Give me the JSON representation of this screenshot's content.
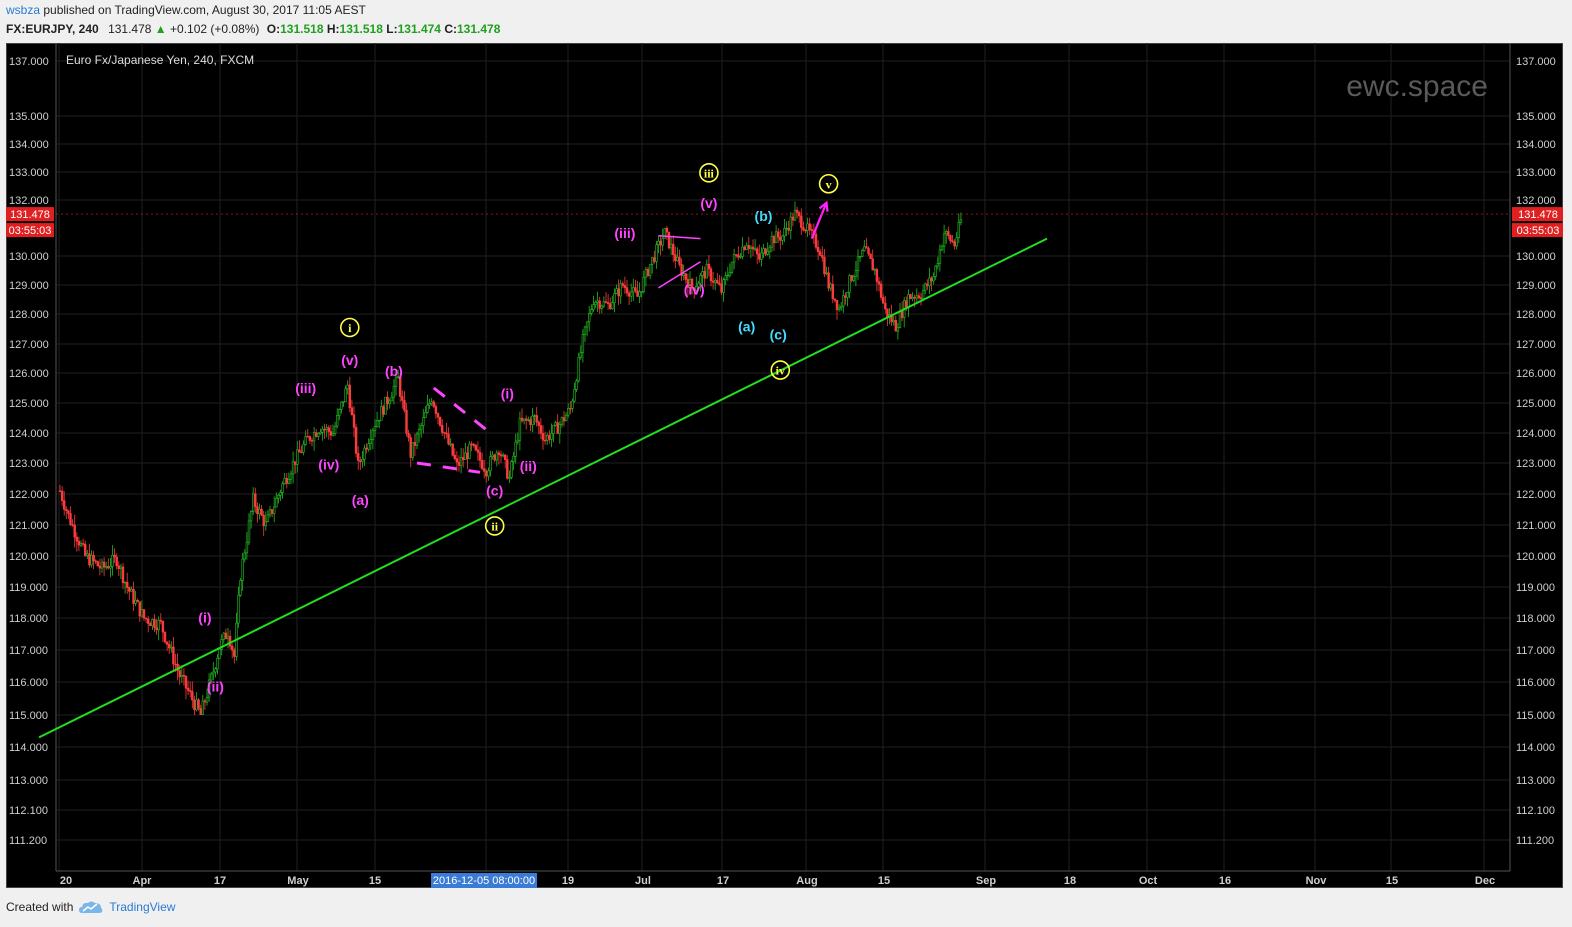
{
  "header": {
    "user": "wsbza",
    "published": " published on TradingView.com, August 30, 2017 11:05 AEST",
    "symbol": "FX:EURJPY, 240",
    "last": "131.478",
    "change": "+0.102 (+0.08%)",
    "o_label": "O:",
    "o": "131.518",
    "h_label": "H:",
    "h": "131.518",
    "l_label": "L:",
    "l": "131.474",
    "c_label": "C:",
    "c": "131.478"
  },
  "footer": {
    "created": "Created with",
    "brand": "TradingView"
  },
  "chart_data": {
    "type": "candlestick",
    "title": "Euro Fx/Japanese Yen, 240, FXCM",
    "watermark": "ewc.space",
    "y_ticks": [
      "137.000",
      "135.000",
      "134.000",
      "133.000",
      "132.000",
      "130.000",
      "129.000",
      "128.000",
      "127.000",
      "126.000",
      "125.000",
      "124.000",
      "123.000",
      "122.000",
      "121.000",
      "120.000",
      "119.000",
      "118.000",
      "117.000",
      "116.000",
      "115.000",
      "114.000",
      "113.000",
      "112.100",
      "111.200"
    ],
    "x_ticks": [
      "20",
      "Apr",
      "17",
      "May",
      "15",
      "19",
      "Jul",
      "17",
      "Aug",
      "15",
      "Sep",
      "18",
      "Oct",
      "16",
      "Nov",
      "15",
      "Dec"
    ],
    "cursor_label": "2016-12-05 08:00:00",
    "price_label": "131.478",
    "countdown": "03:55:03",
    "waypoints": [
      [
        0,
        122.1
      ],
      [
        4,
        121.3
      ],
      [
        12,
        120.0
      ],
      [
        20,
        119.6
      ],
      [
        27,
        119.9
      ],
      [
        32,
        119.0
      ],
      [
        40,
        118.0
      ],
      [
        48,
        117.8
      ],
      [
        57,
        116.2
      ],
      [
        67,
        115.0
      ],
      [
        72,
        116.1
      ],
      [
        76,
        117.1
      ],
      [
        80,
        117.6
      ],
      [
        83,
        116.8
      ],
      [
        86,
        119.4
      ],
      [
        92,
        121.8
      ],
      [
        98,
        121.0
      ],
      [
        106,
        122.3
      ],
      [
        112,
        123.1
      ],
      [
        118,
        123.8
      ],
      [
        124,
        124.2
      ],
      [
        130,
        124.0
      ],
      [
        137,
        125.6
      ],
      [
        142,
        122.9
      ],
      [
        149,
        124.2
      ],
      [
        156,
        125.1
      ],
      [
        161,
        125.8
      ],
      [
        167,
        123.3
      ],
      [
        173,
        124.4
      ],
      [
        177,
        125.2
      ],
      [
        183,
        124.0
      ],
      [
        189,
        122.9
      ],
      [
        196,
        123.5
      ],
      [
        203,
        122.8
      ],
      [
        209,
        123.5
      ],
      [
        214,
        122.5
      ],
      [
        219,
        124.3
      ],
      [
        226,
        124.5
      ],
      [
        231,
        123.8
      ],
      [
        237,
        124.2
      ],
      [
        243,
        124.8
      ],
      [
        249,
        127.1
      ],
      [
        254,
        128.5
      ],
      [
        261,
        128.3
      ],
      [
        268,
        129.0
      ],
      [
        275,
        128.6
      ],
      [
        281,
        129.7
      ],
      [
        288,
        130.8
      ],
      [
        295,
        129.6
      ],
      [
        301,
        128.9
      ],
      [
        308,
        129.5
      ],
      [
        315,
        128.8
      ],
      [
        320,
        129.8
      ],
      [
        327,
        130.5
      ],
      [
        333,
        129.9
      ],
      [
        339,
        130.6
      ],
      [
        344,
        130.7
      ],
      [
        350,
        131.5
      ],
      [
        357,
        130.8
      ],
      [
        362,
        130.2
      ],
      [
        366,
        129.0
      ],
      [
        371,
        128.2
      ],
      [
        377,
        129.3
      ],
      [
        383,
        130.2
      ],
      [
        388,
        129.5
      ],
      [
        393,
        128.1
      ],
      [
        398,
        127.6
      ],
      [
        404,
        128.6
      ],
      [
        410,
        128.7
      ],
      [
        416,
        129.3
      ],
      [
        421,
        130.8
      ],
      [
        426,
        130.4
      ],
      [
        430,
        131.5
      ]
    ],
    "candles": 430,
    "trendline": {
      "from": [
        -10,
        114.3
      ],
      "to": [
        470,
        130.6
      ]
    },
    "wave_labels": [
      {
        "text": "(i)",
        "idx": 69,
        "y": 118.02,
        "color": "#ff44ff",
        "circled": false
      },
      {
        "text": "(ii)",
        "idx": 74,
        "y": 115.87,
        "color": "#ff44ff",
        "circled": false
      },
      {
        "text": "(iii)",
        "idx": 117,
        "y": 125.5,
        "color": "#ff44ff",
        "circled": false
      },
      {
        "text": "(iv)",
        "idx": 128,
        "y": 122.95,
        "color": "#ff44ff",
        "circled": false
      },
      {
        "text": "(v)",
        "idx": 138,
        "y": 126.45,
        "color": "#ff44ff",
        "circled": false
      },
      {
        "text": "i",
        "idx": 138,
        "y": 127.55,
        "color": "#ffff44",
        "circled": true
      },
      {
        "text": "(a)",
        "idx": 143,
        "y": 121.8,
        "color": "#ff44ff",
        "circled": false
      },
      {
        "text": "(b)",
        "idx": 159,
        "y": 126.07,
        "color": "#ff44ff",
        "circled": false
      },
      {
        "text": "(c)",
        "idx": 207,
        "y": 122.12,
        "color": "#ff44ff",
        "circled": false
      },
      {
        "text": "ii",
        "idx": 207,
        "y": 120.97,
        "color": "#ffff44",
        "circled": true
      },
      {
        "text": "(i)",
        "idx": 213,
        "y": 125.32,
        "color": "#ff44ff",
        "circled": false
      },
      {
        "text": "(ii)",
        "idx": 223,
        "y": 122.9,
        "color": "#ff44ff",
        "circled": false
      },
      {
        "text": "(iii)",
        "idx": 269,
        "y": 130.79,
        "color": "#ff44ff",
        "circled": false
      },
      {
        "text": "(iv)",
        "idx": 302,
        "y": 128.85,
        "color": "#ff44ff",
        "circled": false
      },
      {
        "text": "(v)",
        "idx": 309,
        "y": 131.88,
        "color": "#ff44ff",
        "circled": false
      },
      {
        "text": "iii",
        "idx": 309,
        "y": 132.97,
        "color": "#ffff44",
        "circled": true
      },
      {
        "text": "(a)",
        "idx": 327,
        "y": 127.58,
        "color": "#44ddff",
        "circled": false
      },
      {
        "text": "(b)",
        "idx": 335,
        "y": 131.4,
        "color": "#44ddff",
        "circled": false
      },
      {
        "text": "(c)",
        "idx": 342,
        "y": 127.32,
        "color": "#44ddff",
        "circled": false
      },
      {
        "text": "iv",
        "idx": 343,
        "y": 126.1,
        "color": "#ffff44",
        "circled": true
      },
      {
        "text": "v",
        "idx": 366,
        "y": 132.58,
        "color": "#ffff44",
        "circled": true
      }
    ],
    "triangle_lines": [
      {
        "a": [
          285,
          130.7
        ],
        "b": [
          305,
          130.6
        ],
        "color": "#ff44ff",
        "dash": false
      },
      {
        "a": [
          285,
          128.9
        ],
        "b": [
          305,
          129.8
        ],
        "color": "#ff44ff",
        "dash": false
      }
    ],
    "channel_lines": [
      {
        "a": [
          178,
          125.5
        ],
        "b": [
          205,
          124.0
        ],
        "color": "#ff44ff",
        "dash": true
      },
      {
        "a": [
          170,
          123.0
        ],
        "b": [
          200,
          122.7
        ],
        "color": "#ff44ff",
        "dash": true
      }
    ],
    "arrow": {
      "from": [
        358,
        130.6
      ],
      "to": [
        365,
        131.9
      ],
      "color": "#ff22ff"
    },
    "colors": {
      "up": "#1fbf1f",
      "down": "#ff3b3b",
      "trend": "#22dd22",
      "grid": "#1f1f1f",
      "price_tag": "#e02020"
    },
    "grid": true
  }
}
